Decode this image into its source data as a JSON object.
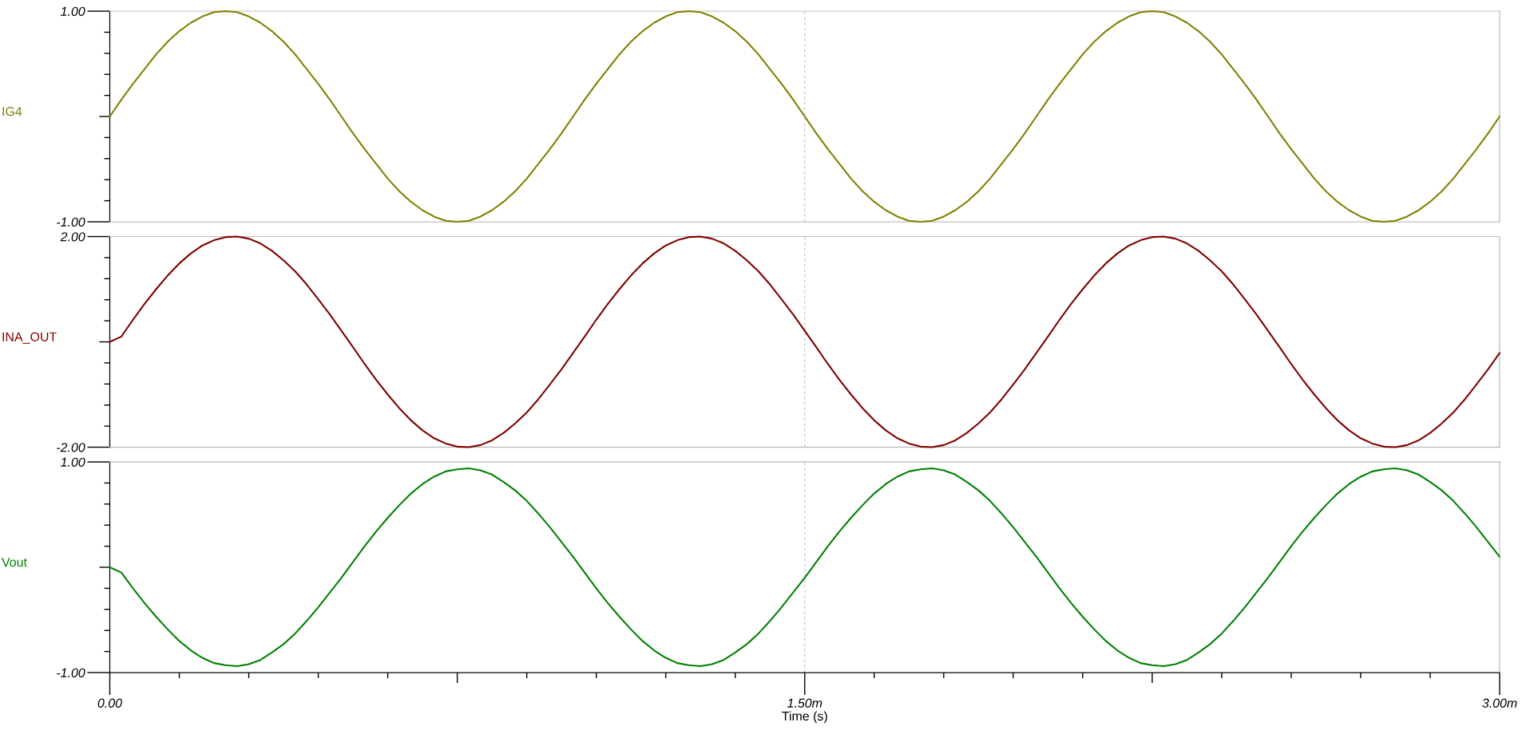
{
  "chart_data": [
    {
      "type": "line",
      "ylabel": "IG4",
      "tick_labels": "y",
      "grid": "x",
      "xlim": [
        0,
        3
      ],
      "ylim": [
        -1,
        1
      ],
      "xticks": [
        0,
        1.5,
        3
      ],
      "yticks": [
        {
          "value": 1,
          "label": "1.00"
        },
        {
          "value": 0.8,
          "label": null
        },
        {
          "value": 0.6,
          "label": null
        },
        {
          "value": 0.4,
          "label": null
        },
        {
          "value": 0.2,
          "label": null
        },
        {
          "value": 0,
          "label": null
        },
        {
          "value": -0.2,
          "label": null
        },
        {
          "value": -0.4,
          "label": null
        },
        {
          "value": -0.6,
          "label": null
        },
        {
          "value": -0.8,
          "label": null
        },
        {
          "value": -1,
          "label": "-1.00"
        }
      ],
      "x": [
        0,
        0.025,
        0.05,
        0.075,
        0.1,
        0.125,
        0.15,
        0.175,
        0.2,
        0.225,
        0.25,
        0.275,
        0.3,
        0.325,
        0.35,
        0.375,
        0.4,
        0.425,
        0.45,
        0.475,
        0.5,
        0.525,
        0.55,
        0.575,
        0.6,
        0.625,
        0.65,
        0.675,
        0.7,
        0.725,
        0.75,
        0.775,
        0.8,
        0.825,
        0.85,
        0.875,
        0.9,
        0.925,
        0.95,
        0.975,
        1,
        1.025,
        1.05,
        1.075,
        1.1,
        1.125,
        1.15,
        1.175,
        1.2,
        1.225,
        1.25,
        1.275,
        1.3,
        1.325,
        1.35,
        1.375,
        1.4,
        1.425,
        1.45,
        1.475,
        1.5,
        1.525,
        1.55,
        1.575,
        1.6,
        1.625,
        1.65,
        1.675,
        1.7,
        1.725,
        1.75,
        1.775,
        1.8,
        1.825,
        1.85,
        1.875,
        1.9,
        1.925,
        1.95,
        1.975,
        2,
        2.025,
        2.05,
        2.075,
        2.1,
        2.125,
        2.15,
        2.175,
        2.2,
        2.225,
        2.25,
        2.275,
        2.3,
        2.325,
        2.35,
        2.375,
        2.4,
        2.425,
        2.45,
        2.475,
        2.5,
        2.525,
        2.55,
        2.575,
        2.6,
        2.625,
        2.65,
        2.675,
        2.7,
        2.725,
        2.75,
        2.775,
        2.8,
        2.825,
        2.85,
        2.875,
        2.9,
        2.925,
        2.95,
        2.975,
        3
      ],
      "series": [
        {
          "color": "#808000",
          "values": [
            0,
            0.16,
            0.31,
            0.45,
            0.59,
            0.71,
            0.81,
            0.89,
            0.95,
            0.99,
            1,
            0.99,
            0.95,
            0.89,
            0.81,
            0.71,
            0.59,
            0.45,
            0.31,
            0.16,
            0,
            -0.16,
            -0.31,
            -0.45,
            -0.59,
            -0.71,
            -0.81,
            -0.89,
            -0.95,
            -0.99,
            -1,
            -0.99,
            -0.95,
            -0.89,
            -0.81,
            -0.71,
            -0.59,
            -0.45,
            -0.31,
            -0.16,
            0,
            0.16,
            0.31,
            0.45,
            0.59,
            0.71,
            0.81,
            0.89,
            0.95,
            0.99,
            1,
            0.99,
            0.95,
            0.89,
            0.81,
            0.71,
            0.59,
            0.45,
            0.31,
            0.16,
            0,
            -0.16,
            -0.31,
            -0.45,
            -0.59,
            -0.71,
            -0.81,
            -0.89,
            -0.95,
            -0.99,
            -1,
            -0.99,
            -0.95,
            -0.89,
            -0.81,
            -0.71,
            -0.59,
            -0.45,
            -0.31,
            -0.16,
            0,
            0.16,
            0.31,
            0.45,
            0.59,
            0.71,
            0.81,
            0.89,
            0.95,
            0.99,
            1,
            0.99,
            0.95,
            0.89,
            0.81,
            0.71,
            0.59,
            0.45,
            0.31,
            0.16,
            0,
            -0.16,
            -0.31,
            -0.45,
            -0.59,
            -0.71,
            -0.81,
            -0.89,
            -0.95,
            -0.99,
            -1,
            -0.99,
            -0.95,
            -0.89,
            -0.81,
            -0.71,
            -0.59,
            -0.45,
            -0.31,
            -0.16,
            0
          ]
        }
      ]
    },
    {
      "type": "line",
      "ylabel": "INA_OUT",
      "tick_labels": "y",
      "grid": "x",
      "xlim": [
        0,
        3
      ],
      "ylim": [
        -2,
        2
      ],
      "xticks": [
        0,
        1.5,
        3
      ],
      "yticks": [
        {
          "value": 2,
          "label": "2.00"
        },
        {
          "value": 1.6,
          "label": null
        },
        {
          "value": 1.2,
          "label": null
        },
        {
          "value": 0.8,
          "label": null
        },
        {
          "value": 0.4,
          "label": null
        },
        {
          "value": 0,
          "label": null
        },
        {
          "value": -0.4,
          "label": null
        },
        {
          "value": -0.8,
          "label": null
        },
        {
          "value": -1.2,
          "label": null
        },
        {
          "value": -1.6,
          "label": null
        },
        {
          "value": -2,
          "label": "-2.00"
        }
      ],
      "x": [
        0,
        0.025,
        0.05,
        0.075,
        0.1,
        0.125,
        0.15,
        0.175,
        0.2,
        0.225,
        0.25,
        0.275,
        0.3,
        0.325,
        0.35,
        0.375,
        0.4,
        0.425,
        0.45,
        0.475,
        0.5,
        0.525,
        0.55,
        0.575,
        0.6,
        0.625,
        0.65,
        0.675,
        0.7,
        0.725,
        0.75,
        0.775,
        0.8,
        0.825,
        0.85,
        0.875,
        0.9,
        0.925,
        0.95,
        0.975,
        1,
        1.025,
        1.05,
        1.075,
        1.1,
        1.125,
        1.15,
        1.175,
        1.2,
        1.225,
        1.25,
        1.275,
        1.3,
        1.325,
        1.35,
        1.375,
        1.4,
        1.425,
        1.45,
        1.475,
        1.5,
        1.525,
        1.55,
        1.575,
        1.6,
        1.625,
        1.65,
        1.675,
        1.7,
        1.725,
        1.75,
        1.775,
        1.8,
        1.825,
        1.85,
        1.875,
        1.9,
        1.925,
        1.95,
        1.975,
        2,
        2.025,
        2.05,
        2.075,
        2.1,
        2.125,
        2.15,
        2.175,
        2.2,
        2.225,
        2.25,
        2.275,
        2.3,
        2.325,
        2.35,
        2.375,
        2.4,
        2.425,
        2.45,
        2.475,
        2.5,
        2.525,
        2.55,
        2.575,
        2.6,
        2.625,
        2.65,
        2.675,
        2.7,
        2.725,
        2.75,
        2.775,
        2.8,
        2.825,
        2.85,
        2.875,
        2.9,
        2.925,
        2.95,
        2.975,
        3
      ],
      "series": [
        {
          "color": "#800000",
          "values": [
            0,
            0.1,
            0.42,
            0.72,
            1.0,
            1.26,
            1.49,
            1.68,
            1.83,
            1.93,
            1.99,
            2.0,
            1.96,
            1.87,
            1.73,
            1.55,
            1.34,
            1.09,
            0.81,
            0.52,
            0.21,
            -0.1,
            -0.42,
            -0.72,
            -1.0,
            -1.26,
            -1.49,
            -1.68,
            -1.83,
            -1.93,
            -1.99,
            -2.0,
            -1.96,
            -1.87,
            -1.73,
            -1.55,
            -1.34,
            -1.09,
            -0.81,
            -0.52,
            -0.21,
            0.1,
            0.42,
            0.72,
            1.0,
            1.26,
            1.49,
            1.68,
            1.83,
            1.93,
            1.99,
            2.0,
            1.96,
            1.87,
            1.73,
            1.55,
            1.34,
            1.09,
            0.81,
            0.52,
            0.21,
            -0.1,
            -0.42,
            -0.72,
            -1.0,
            -1.26,
            -1.49,
            -1.68,
            -1.83,
            -1.93,
            -1.99,
            -2.0,
            -1.96,
            -1.87,
            -1.73,
            -1.55,
            -1.34,
            -1.09,
            -0.81,
            -0.52,
            -0.21,
            0.1,
            0.42,
            0.72,
            1.0,
            1.26,
            1.49,
            1.68,
            1.83,
            1.93,
            1.99,
            2.0,
            1.96,
            1.87,
            1.73,
            1.55,
            1.34,
            1.09,
            0.81,
            0.52,
            0.21,
            -0.1,
            -0.42,
            -0.72,
            -1.0,
            -1.26,
            -1.49,
            -1.68,
            -1.83,
            -1.93,
            -1.99,
            -2.0,
            -1.96,
            -1.87,
            -1.73,
            -1.55,
            -1.34,
            -1.09,
            -0.81,
            -0.52,
            -0.21
          ]
        }
      ]
    },
    {
      "type": "line",
      "ylabel": "Vout",
      "xlabel": "Time (s)",
      "grid": "x",
      "xlim": [
        0,
        3
      ],
      "ylim": [
        -1,
        1
      ],
      "xticks": [
        {
          "value": 0,
          "label": "0.00"
        },
        {
          "value": 0.15,
          "label": null
        },
        {
          "value": 0.3,
          "label": null
        },
        {
          "value": 0.45,
          "label": null
        },
        {
          "value": 0.6,
          "label": null
        },
        {
          "value": 0.75,
          "label": null
        },
        {
          "value": 0.9,
          "label": null
        },
        {
          "value": 1.05,
          "label": null
        },
        {
          "value": 1.2,
          "label": null
        },
        {
          "value": 1.35,
          "label": null
        },
        {
          "value": 1.5,
          "label": "1.50m"
        },
        {
          "value": 1.65,
          "label": null
        },
        {
          "value": 1.8,
          "label": null
        },
        {
          "value": 1.95,
          "label": null
        },
        {
          "value": 2.1,
          "label": null
        },
        {
          "value": 2.25,
          "label": null
        },
        {
          "value": 2.4,
          "label": null
        },
        {
          "value": 2.55,
          "label": null
        },
        {
          "value": 2.7,
          "label": null
        },
        {
          "value": 2.85,
          "label": null
        },
        {
          "value": 3,
          "label": "3.00m"
        }
      ],
      "yticks": [
        {
          "value": 1,
          "label": "1.00"
        },
        {
          "value": 0.8,
          "label": null
        },
        {
          "value": 0.6,
          "label": null
        },
        {
          "value": 0.4,
          "label": null
        },
        {
          "value": 0.2,
          "label": null
        },
        {
          "value": 0,
          "label": null
        },
        {
          "value": -0.2,
          "label": null
        },
        {
          "value": -0.4,
          "label": null
        },
        {
          "value": -0.6,
          "label": null
        },
        {
          "value": -0.8,
          "label": null
        },
        {
          "value": -1,
          "label": "-1.00"
        }
      ],
      "x": [
        0,
        0.025,
        0.05,
        0.075,
        0.1,
        0.125,
        0.15,
        0.175,
        0.2,
        0.225,
        0.25,
        0.275,
        0.3,
        0.325,
        0.35,
        0.375,
        0.4,
        0.425,
        0.45,
        0.475,
        0.5,
        0.525,
        0.55,
        0.575,
        0.6,
        0.625,
        0.65,
        0.675,
        0.7,
        0.725,
        0.75,
        0.775,
        0.8,
        0.825,
        0.85,
        0.875,
        0.9,
        0.925,
        0.95,
        0.975,
        1,
        1.025,
        1.05,
        1.075,
        1.1,
        1.125,
        1.15,
        1.175,
        1.2,
        1.225,
        1.25,
        1.275,
        1.3,
        1.325,
        1.35,
        1.375,
        1.4,
        1.425,
        1.45,
        1.475,
        1.5,
        1.525,
        1.55,
        1.575,
        1.6,
        1.625,
        1.65,
        1.675,
        1.7,
        1.725,
        1.75,
        1.775,
        1.8,
        1.825,
        1.85,
        1.875,
        1.9,
        1.925,
        1.95,
        1.975,
        2,
        2.025,
        2.05,
        2.075,
        2.1,
        2.125,
        2.15,
        2.175,
        2.2,
        2.225,
        2.25,
        2.275,
        2.3,
        2.325,
        2.35,
        2.375,
        2.4,
        2.425,
        2.45,
        2.475,
        2.5,
        2.525,
        2.55,
        2.575,
        2.6,
        2.625,
        2.65,
        2.675,
        2.7,
        2.725,
        2.75,
        2.775,
        2.8,
        2.825,
        2.85,
        2.875,
        2.9,
        2.925,
        2.95,
        2.975,
        3
      ],
      "series": [
        {
          "color": "#008000",
          "values": [
            0,
            -0.05,
            -0.2,
            -0.34,
            -0.47,
            -0.59,
            -0.7,
            -0.79,
            -0.86,
            -0.91,
            -0.93,
            -0.94,
            -0.92,
            -0.88,
            -0.81,
            -0.73,
            -0.63,
            -0.51,
            -0.38,
            -0.24,
            -0.1,
            0.05,
            0.2,
            0.34,
            0.47,
            0.59,
            0.7,
            0.79,
            0.86,
            0.91,
            0.93,
            0.94,
            0.92,
            0.88,
            0.81,
            0.73,
            0.63,
            0.51,
            0.38,
            0.24,
            0.1,
            -0.05,
            -0.2,
            -0.34,
            -0.47,
            -0.59,
            -0.7,
            -0.79,
            -0.86,
            -0.91,
            -0.93,
            -0.94,
            -0.92,
            -0.88,
            -0.81,
            -0.73,
            -0.63,
            -0.51,
            -0.38,
            -0.24,
            -0.1,
            0.05,
            0.2,
            0.34,
            0.47,
            0.59,
            0.7,
            0.79,
            0.86,
            0.91,
            0.93,
            0.94,
            0.92,
            0.88,
            0.81,
            0.73,
            0.63,
            0.51,
            0.38,
            0.24,
            0.1,
            -0.05,
            -0.2,
            -0.34,
            -0.47,
            -0.59,
            -0.7,
            -0.79,
            -0.86,
            -0.91,
            -0.93,
            -0.94,
            -0.92,
            -0.88,
            -0.81,
            -0.73,
            -0.63,
            -0.51,
            -0.38,
            -0.24,
            -0.1,
            0.05,
            0.2,
            0.34,
            0.47,
            0.59,
            0.7,
            0.79,
            0.86,
            0.91,
            0.93,
            0.94,
            0.92,
            0.88,
            0.81,
            0.73,
            0.63,
            0.51,
            0.38,
            0.24,
            0.1
          ]
        }
      ]
    }
  ]
}
